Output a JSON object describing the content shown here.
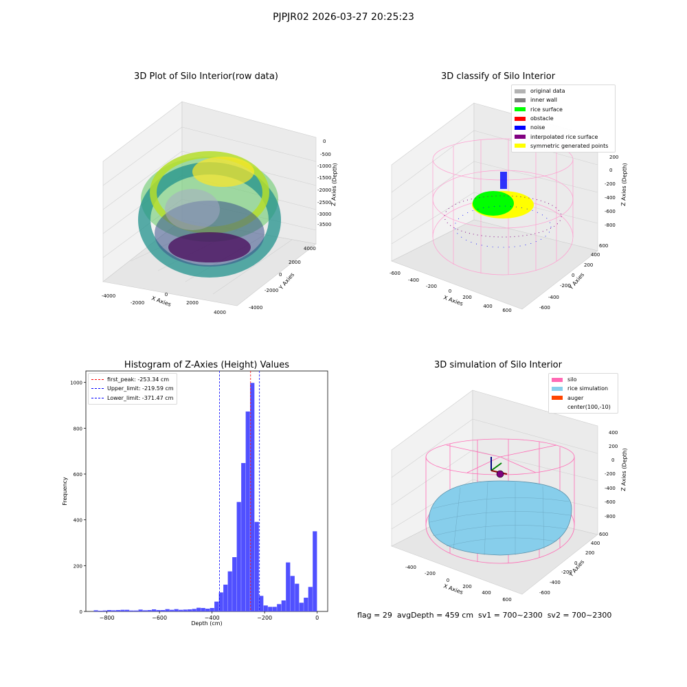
{
  "suptitle": "PJPJR02 2026-03-27 20:25:23",
  "panels": {
    "raw": {
      "title": "3D Plot of Silo Interior(row data)",
      "xlabel": "X Axies",
      "ylabel": "Y Axies",
      "zlabel": "Z Axies (Depth)",
      "xticks": [
        "-4000",
        "-2000",
        "0",
        "2000",
        "4000"
      ],
      "yticks": [
        "-4000",
        "-2000",
        "0",
        "2000",
        "4000"
      ],
      "zticks": [
        "0",
        "-500",
        "-1000",
        "-1500",
        "-2000",
        "-2500",
        "-3000",
        "-3500"
      ]
    },
    "classify": {
      "title": "3D classify of Silo Interior",
      "xlabel": "X Axies",
      "ylabel": "Y Axies",
      "zlabel": "Z Axies (Depth)",
      "xticks": [
        "-600",
        "-400",
        "-200",
        "0",
        "200",
        "400",
        "600"
      ],
      "yticks": [
        "-600",
        "-400",
        "-200",
        "0",
        "200",
        "400",
        "600"
      ],
      "zticks": [
        "200",
        "0",
        "-200",
        "-400",
        "-600",
        "-800"
      ],
      "legend": [
        {
          "label": "original data",
          "color": "#b3b3b3"
        },
        {
          "label": "inner wall",
          "color": "#808080"
        },
        {
          "label": "rice surface",
          "color": "#00ff00"
        },
        {
          "label": "obstacle",
          "color": "#ff0000"
        },
        {
          "label": "noise",
          "color": "#0000ff"
        },
        {
          "label": "interpolated rice surface",
          "color": "#800080"
        },
        {
          "label": "symmetric generated points",
          "color": "#ffff00"
        }
      ]
    },
    "simulation": {
      "title": "3D simulation of Silo Interior",
      "xlabel": "X Axies",
      "ylabel": "Y Axies",
      "zlabel": "Z Axies (Depth)",
      "xticks": [
        "-400",
        "-200",
        "0",
        "200",
        "400",
        "600"
      ],
      "yticks": [
        "-600",
        "-400",
        "-200",
        "0",
        "200",
        "400",
        "600"
      ],
      "zticks": [
        "400",
        "200",
        "0",
        "-200",
        "-400",
        "-600",
        "-800"
      ],
      "legend": [
        {
          "label": "silo",
          "color": "#ff69b4"
        },
        {
          "label": "rice simulation",
          "color": "#87ceeb"
        },
        {
          "label": "auger",
          "color": "#ff4500"
        },
        {
          "label": "center(100,-10)",
          "color": ""
        }
      ]
    }
  },
  "chart_data": [
    {
      "type": "histogram",
      "title": "Histogram of Z-Axies (Height) Values",
      "xlabel": "Depth (cm)",
      "ylabel": "Frequency",
      "xlim": [
        -880,
        40
      ],
      "ylim": [
        0,
        1050
      ],
      "xticks": [
        -800,
        -600,
        -400,
        -200,
        0
      ],
      "yticks": [
        0,
        200,
        400,
        600,
        800,
        1000
      ],
      "bar_color": "#5050ff",
      "bin_width": 17,
      "bins": [
        {
          "x": -850,
          "count": 5
        },
        {
          "x": -833,
          "count": 3
        },
        {
          "x": -816,
          "count": 4
        },
        {
          "x": -799,
          "count": 6
        },
        {
          "x": -782,
          "count": 5
        },
        {
          "x": -765,
          "count": 6
        },
        {
          "x": -748,
          "count": 7
        },
        {
          "x": -731,
          "count": 7
        },
        {
          "x": -714,
          "count": 4
        },
        {
          "x": -697,
          "count": 4
        },
        {
          "x": -680,
          "count": 8
        },
        {
          "x": -663,
          "count": 5
        },
        {
          "x": -646,
          "count": 6
        },
        {
          "x": -629,
          "count": 9
        },
        {
          "x": -612,
          "count": 6
        },
        {
          "x": -595,
          "count": 6
        },
        {
          "x": -578,
          "count": 10
        },
        {
          "x": -561,
          "count": 7
        },
        {
          "x": -544,
          "count": 10
        },
        {
          "x": -527,
          "count": 7
        },
        {
          "x": -510,
          "count": 8
        },
        {
          "x": -493,
          "count": 9
        },
        {
          "x": -476,
          "count": 11
        },
        {
          "x": -459,
          "count": 16
        },
        {
          "x": -442,
          "count": 15
        },
        {
          "x": -425,
          "count": 12
        },
        {
          "x": -408,
          "count": 15
        },
        {
          "x": -391,
          "count": 43
        },
        {
          "x": -374,
          "count": 83
        },
        {
          "x": -357,
          "count": 117
        },
        {
          "x": -340,
          "count": 175
        },
        {
          "x": -323,
          "count": 237
        },
        {
          "x": -306,
          "count": 478
        },
        {
          "x": -289,
          "count": 648
        },
        {
          "x": -272,
          "count": 873
        },
        {
          "x": -255,
          "count": 998
        },
        {
          "x": -238,
          "count": 391
        },
        {
          "x": -221,
          "count": 68
        },
        {
          "x": -204,
          "count": 26
        },
        {
          "x": -187,
          "count": 20
        },
        {
          "x": -170,
          "count": 20
        },
        {
          "x": -153,
          "count": 32
        },
        {
          "x": -136,
          "count": 48
        },
        {
          "x": -119,
          "count": 214
        },
        {
          "x": -102,
          "count": 155
        },
        {
          "x": -85,
          "count": 121
        },
        {
          "x": -68,
          "count": 38
        },
        {
          "x": -51,
          "count": 60
        },
        {
          "x": -34,
          "count": 107
        },
        {
          "x": -17,
          "count": 350
        }
      ],
      "vlines": [
        {
          "label": "first_peak: -253.34 cm",
          "x": -253.34,
          "color": "#ff0000"
        },
        {
          "label": "Upper_limit: -219.59 cm",
          "x": -219.59,
          "color": "#0000ff"
        },
        {
          "label": "Lower_limit: -371.47 cm",
          "x": -371.47,
          "color": "#0000ff"
        }
      ]
    }
  ],
  "footer": {
    "text": "flag = 29  avgDepth = 459 cm  sv1 = 700~2300  sv2 = 700~2300",
    "flag": 29,
    "avgDepth_cm": 459,
    "sv1": "700~2300",
    "sv2": "700~2300"
  }
}
